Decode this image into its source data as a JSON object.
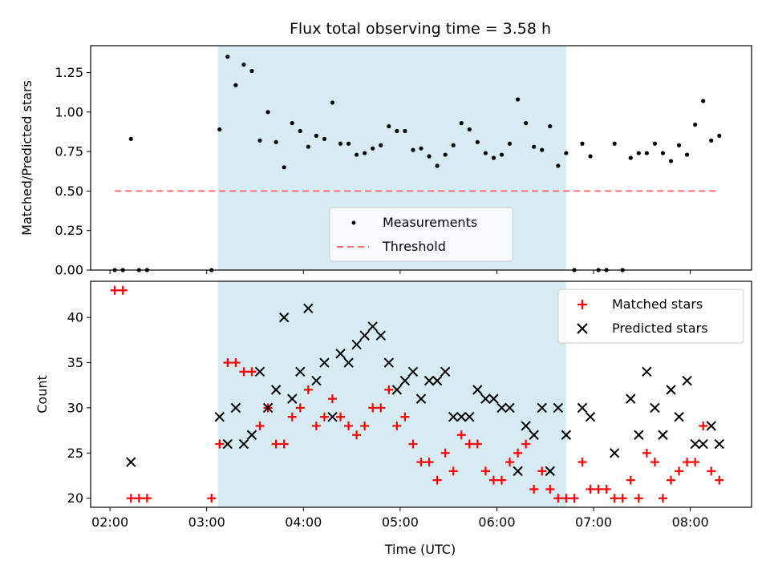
{
  "chart_data": [
    {
      "type": "scatter",
      "title": "Flux total observing time = 3.58 h",
      "xlabel": "",
      "ylabel": "Matched/Predicted stars",
      "ylim": [
        0,
        1.42
      ],
      "yticks": [
        "0.00",
        "0.25",
        "0.50",
        "0.75",
        "1.00",
        "1.25"
      ],
      "xlim": [
        "01:48",
        "08:38"
      ],
      "highlight_span": {
        "start": "03:07",
        "end": "06:43",
        "color": "#add8e6"
      },
      "legend": {
        "position": "lower-center",
        "entries": [
          "Measurements",
          "Threshold"
        ]
      },
      "threshold": {
        "name": "Threshold",
        "y": 0.5,
        "x": [
          "02:03",
          "08:18"
        ],
        "color": "#ff7070"
      },
      "series": [
        {
          "name": "Measurements",
          "color": "#000000",
          "points": [
            [
              "02:03",
              0.0
            ],
            [
              "02:08",
              0.0
            ],
            [
              "02:13",
              0.83
            ],
            [
              "02:18",
              0.0
            ],
            [
              "02:23",
              0.0
            ],
            [
              "03:03",
              0.0
            ],
            [
              "03:08",
              0.89
            ],
            [
              "03:13",
              1.35
            ],
            [
              "03:18",
              1.17
            ],
            [
              "03:23",
              1.3
            ],
            [
              "03:28",
              1.26
            ],
            [
              "03:33",
              0.82
            ],
            [
              "03:38",
              1.0
            ],
            [
              "03:43",
              0.81
            ],
            [
              "03:48",
              0.65
            ],
            [
              "03:53",
              0.93
            ],
            [
              "03:58",
              0.88
            ],
            [
              "04:03",
              0.78
            ],
            [
              "04:08",
              0.85
            ],
            [
              "04:13",
              0.83
            ],
            [
              "04:18",
              1.06
            ],
            [
              "04:23",
              0.8
            ],
            [
              "04:28",
              0.8
            ],
            [
              "04:33",
              0.73
            ],
            [
              "04:38",
              0.74
            ],
            [
              "04:43",
              0.77
            ],
            [
              "04:48",
              0.79
            ],
            [
              "04:53",
              0.91
            ],
            [
              "04:58",
              0.88
            ],
            [
              "05:03",
              0.88
            ],
            [
              "05:08",
              0.76
            ],
            [
              "05:13",
              0.77
            ],
            [
              "05:18",
              0.72
            ],
            [
              "05:23",
              0.66
            ],
            [
              "05:28",
              0.73
            ],
            [
              "05:33",
              0.79
            ],
            [
              "05:38",
              0.93
            ],
            [
              "05:43",
              0.89
            ],
            [
              "05:48",
              0.81
            ],
            [
              "05:53",
              0.74
            ],
            [
              "05:58",
              0.71
            ],
            [
              "06:03",
              0.73
            ],
            [
              "06:08",
              0.8
            ],
            [
              "06:13",
              1.08
            ],
            [
              "06:18",
              0.93
            ],
            [
              "06:23",
              0.78
            ],
            [
              "06:28",
              0.76
            ],
            [
              "06:33",
              0.91
            ],
            [
              "06:38",
              0.66
            ],
            [
              "06:43",
              0.74
            ],
            [
              "06:48",
              0.0
            ],
            [
              "06:53",
              0.8
            ],
            [
              "06:58",
              0.72
            ],
            [
              "07:03",
              0.0
            ],
            [
              "07:08",
              0.0
            ],
            [
              "07:13",
              0.8
            ],
            [
              "07:18",
              0.0
            ],
            [
              "07:23",
              0.71
            ],
            [
              "07:28",
              0.74
            ],
            [
              "07:33",
              0.74
            ],
            [
              "07:38",
              0.8
            ],
            [
              "07:43",
              0.74
            ],
            [
              "07:48",
              0.69
            ],
            [
              "07:53",
              0.79
            ],
            [
              "07:58",
              0.73
            ],
            [
              "08:03",
              0.92
            ],
            [
              "08:08",
              1.07
            ],
            [
              "08:13",
              0.82
            ],
            [
              "08:18",
              0.85
            ]
          ]
        }
      ]
    },
    {
      "type": "scatter",
      "title": "",
      "xlabel": "Time (UTC)",
      "ylabel": "Count",
      "ylim": [
        19,
        44
      ],
      "yticks": [
        "20",
        "25",
        "30",
        "35",
        "40"
      ],
      "xlim": [
        "01:48",
        "08:38"
      ],
      "xticks": [
        "02:00",
        "03:00",
        "04:00",
        "05:00",
        "06:00",
        "07:00",
        "08:00"
      ],
      "highlight_span": {
        "start": "03:07",
        "end": "06:43",
        "color": "#add8e6"
      },
      "legend": {
        "position": "upper-right",
        "entries": [
          "Matched stars",
          "Predicted stars"
        ]
      },
      "series": [
        {
          "name": "Matched stars",
          "marker": "+",
          "color": "#ff0000",
          "points": [
            [
              "02:03",
              43
            ],
            [
              "02:08",
              43
            ],
            [
              "02:13",
              20
            ],
            [
              "02:18",
              20
            ],
            [
              "02:23",
              20
            ],
            [
              "03:03",
              20
            ],
            [
              "03:08",
              26
            ],
            [
              "03:13",
              35
            ],
            [
              "03:18",
              35
            ],
            [
              "03:23",
              34
            ],
            [
              "03:28",
              34
            ],
            [
              "03:33",
              28
            ],
            [
              "03:38",
              30
            ],
            [
              "03:43",
              26
            ],
            [
              "03:48",
              26
            ],
            [
              "03:53",
              29
            ],
            [
              "03:58",
              30
            ],
            [
              "04:03",
              32
            ],
            [
              "04:08",
              28
            ],
            [
              "04:13",
              29
            ],
            [
              "04:18",
              31
            ],
            [
              "04:23",
              29
            ],
            [
              "04:28",
              28
            ],
            [
              "04:33",
              27
            ],
            [
              "04:38",
              28
            ],
            [
              "04:43",
              30
            ],
            [
              "04:48",
              30
            ],
            [
              "04:53",
              32
            ],
            [
              "04:58",
              28
            ],
            [
              "05:03",
              29
            ],
            [
              "05:08",
              26
            ],
            [
              "05:13",
              24
            ],
            [
              "05:18",
              24
            ],
            [
              "05:23",
              22
            ],
            [
              "05:28",
              25
            ],
            [
              "05:33",
              23
            ],
            [
              "05:38",
              27
            ],
            [
              "05:43",
              26
            ],
            [
              "05:48",
              26
            ],
            [
              "05:53",
              23
            ],
            [
              "05:58",
              22
            ],
            [
              "06:03",
              22
            ],
            [
              "06:08",
              24
            ],
            [
              "06:13",
              25
            ],
            [
              "06:18",
              26
            ],
            [
              "06:23",
              21
            ],
            [
              "06:28",
              23
            ],
            [
              "06:33",
              21
            ],
            [
              "06:38",
              20
            ],
            [
              "06:43",
              20
            ],
            [
              "06:48",
              20
            ],
            [
              "06:53",
              24
            ],
            [
              "06:58",
              21
            ],
            [
              "07:03",
              21
            ],
            [
              "07:08",
              21
            ],
            [
              "07:13",
              20
            ],
            [
              "07:18",
              20
            ],
            [
              "07:23",
              22
            ],
            [
              "07:28",
              20
            ],
            [
              "07:33",
              25
            ],
            [
              "07:38",
              24
            ],
            [
              "07:43",
              20
            ],
            [
              "07:48",
              22
            ],
            [
              "07:53",
              23
            ],
            [
              "07:58",
              24
            ],
            [
              "08:03",
              24
            ],
            [
              "08:08",
              28
            ],
            [
              "08:13",
              23
            ],
            [
              "08:18",
              22
            ]
          ]
        },
        {
          "name": "Predicted stars",
          "marker": "x",
          "color": "#000000",
          "points": [
            [
              "02:13",
              24
            ],
            [
              "03:08",
              29
            ],
            [
              "03:13",
              26
            ],
            [
              "03:18",
              30
            ],
            [
              "03:23",
              26
            ],
            [
              "03:28",
              27
            ],
            [
              "03:33",
              34
            ],
            [
              "03:38",
              30
            ],
            [
              "03:43",
              32
            ],
            [
              "03:48",
              40
            ],
            [
              "03:53",
              31
            ],
            [
              "03:58",
              34
            ],
            [
              "04:03",
              41
            ],
            [
              "04:08",
              33
            ],
            [
              "04:13",
              35
            ],
            [
              "04:18",
              29
            ],
            [
              "04:23",
              36
            ],
            [
              "04:28",
              35
            ],
            [
              "04:33",
              37
            ],
            [
              "04:38",
              38
            ],
            [
              "04:43",
              39
            ],
            [
              "04:48",
              38
            ],
            [
              "04:53",
              35
            ],
            [
              "04:58",
              32
            ],
            [
              "05:03",
              33
            ],
            [
              "05:08",
              34
            ],
            [
              "05:13",
              31
            ],
            [
              "05:18",
              33
            ],
            [
              "05:23",
              33
            ],
            [
              "05:28",
              34
            ],
            [
              "05:33",
              29
            ],
            [
              "05:38",
              29
            ],
            [
              "05:43",
              29
            ],
            [
              "05:48",
              32
            ],
            [
              "05:53",
              31
            ],
            [
              "05:58",
              31
            ],
            [
              "06:03",
              30
            ],
            [
              "06:08",
              30
            ],
            [
              "06:13",
              23
            ],
            [
              "06:18",
              28
            ],
            [
              "06:23",
              27
            ],
            [
              "06:28",
              30
            ],
            [
              "06:33",
              23
            ],
            [
              "06:38",
              30
            ],
            [
              "06:43",
              27
            ],
            [
              "06:53",
              30
            ],
            [
              "06:58",
              29
            ],
            [
              "07:13",
              25
            ],
            [
              "07:23",
              31
            ],
            [
              "07:28",
              27
            ],
            [
              "07:33",
              34
            ],
            [
              "07:38",
              30
            ],
            [
              "07:43",
              27
            ],
            [
              "07:48",
              32
            ],
            [
              "07:53",
              29
            ],
            [
              "07:58",
              33
            ],
            [
              "08:03",
              26
            ],
            [
              "08:08",
              26
            ],
            [
              "08:13",
              28
            ],
            [
              "08:18",
              26
            ]
          ]
        }
      ]
    }
  ]
}
